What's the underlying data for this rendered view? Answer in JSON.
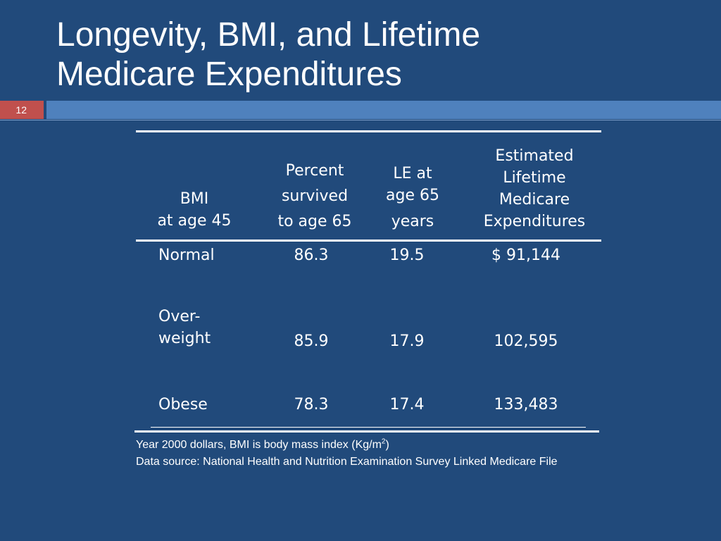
{
  "slide": {
    "title_line1": "Longevity, BMI, and Lifetime",
    "title_line2": "Medicare  Expenditures",
    "number": "12"
  },
  "table": {
    "headers": {
      "bmi": [
        "BMI",
        "at age 45"
      ],
      "percent": [
        "Percent",
        "survived",
        "to age 65"
      ],
      "le": [
        "LE at",
        "age 65",
        "years"
      ],
      "expend": [
        "Estimated",
        "Lifetime",
        "Medicare",
        "Expenditures"
      ]
    },
    "rows": [
      {
        "label": [
          "Normal"
        ],
        "percent": "86.3",
        "le": "19.5",
        "expend": "$ 91,144"
      },
      {
        "label": [
          "Over-",
          "weight"
        ],
        "percent": "85.9",
        "le": "17.9",
        "expend": "102,595"
      },
      {
        "label": [
          "Obese"
        ],
        "percent": "78.3",
        "le": "17.4",
        "expend": "133,483"
      }
    ]
  },
  "footnote": {
    "line1_prefix": "Year 2000 dollars, BMI  is body mass index  (Kg/m",
    "line1_sup": "2",
    "line1_suffix": ")",
    "line2": "Data source: National Health and Nutrition Examination Survey Linked Medicare File"
  },
  "colors": {
    "background": "#214a7b",
    "accent_bar": "#4f81bd",
    "number_box": "#c0504d"
  }
}
